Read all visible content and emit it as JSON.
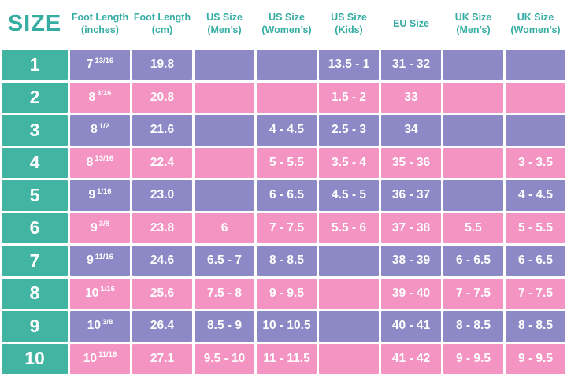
{
  "colors": {
    "teal": "#41B4A2",
    "purple": "#8D89C6",
    "pink": "#F494C2",
    "header_text": "#35ADA3",
    "cell_text": "#FFFFFF",
    "background": "#FFFFFF"
  },
  "chart_data": {
    "type": "table",
    "title": "SIZE",
    "columns": [
      {
        "key": "inches",
        "line1": "Foot Length",
        "line2": "(inches)"
      },
      {
        "key": "cm",
        "line1": "Foot Length",
        "line2": "(cm)"
      },
      {
        "key": "us_mens",
        "line1": "US Size",
        "line2": "(Men’s)"
      },
      {
        "key": "us_womens",
        "line1": "US Size",
        "line2": "(Women’s)"
      },
      {
        "key": "us_kids",
        "line1": "US Size",
        "line2": "(Kids)"
      },
      {
        "key": "eu",
        "line1": "EU Size",
        "line2": ""
      },
      {
        "key": "uk_mens",
        "line1": "UK Size",
        "line2": "(Men’s)"
      },
      {
        "key": "uk_womens",
        "line1": "UK Size",
        "line2": "(Women’s)"
      }
    ],
    "rows": [
      {
        "size": "1",
        "inches": {
          "whole": "7",
          "frac": "13/16"
        },
        "cm": "19.8",
        "us_mens": "",
        "us_womens": "",
        "us_kids": "13.5 - 1",
        "eu": "31 - 32",
        "uk_mens": "",
        "uk_womens": ""
      },
      {
        "size": "2",
        "inches": {
          "whole": "8",
          "frac": "3/16"
        },
        "cm": "20.8",
        "us_mens": "",
        "us_womens": "",
        "us_kids": "1.5 - 2",
        "eu": "33",
        "uk_mens": "",
        "uk_womens": ""
      },
      {
        "size": "3",
        "inches": {
          "whole": "8",
          "frac": "1/2"
        },
        "cm": "21.6",
        "us_mens": "",
        "us_womens": "4 - 4.5",
        "us_kids": "2.5 - 3",
        "eu": "34",
        "uk_mens": "",
        "uk_womens": ""
      },
      {
        "size": "4",
        "inches": {
          "whole": "8",
          "frac": "13/16"
        },
        "cm": "22.4",
        "us_mens": "",
        "us_womens": "5 - 5.5",
        "us_kids": "3.5 - 4",
        "eu": "35 - 36",
        "uk_mens": "",
        "uk_womens": "3 - 3.5"
      },
      {
        "size": "5",
        "inches": {
          "whole": "9",
          "frac": "1/16"
        },
        "cm": "23.0",
        "us_mens": "",
        "us_womens": "6 - 6.5",
        "us_kids": "4.5 - 5",
        "eu": "36 - 37",
        "uk_mens": "",
        "uk_womens": "4 - 4.5"
      },
      {
        "size": "6",
        "inches": {
          "whole": "9",
          "frac": "3/8"
        },
        "cm": "23.8",
        "us_mens": "6",
        "us_womens": "7 - 7.5",
        "us_kids": "5.5 - 6",
        "eu": "37 - 38",
        "uk_mens": "5.5",
        "uk_womens": "5 - 5.5"
      },
      {
        "size": "7",
        "inches": {
          "whole": "9",
          "frac": "11/16"
        },
        "cm": "24.6",
        "us_mens": "6.5 - 7",
        "us_womens": "8 - 8.5",
        "us_kids": "",
        "eu": "38 - 39",
        "uk_mens": "6 - 6.5",
        "uk_womens": "6 - 6.5"
      },
      {
        "size": "8",
        "inches": {
          "whole": "10",
          "frac": "1/16"
        },
        "cm": "25.6",
        "us_mens": "7.5 - 8",
        "us_womens": "9 - 9.5",
        "us_kids": "",
        "eu": "39 - 40",
        "uk_mens": "7 - 7.5",
        "uk_womens": "7 - 7.5"
      },
      {
        "size": "9",
        "inches": {
          "whole": "10",
          "frac": "3/8"
        },
        "cm": "26.4",
        "us_mens": "8.5 - 9",
        "us_womens": "10 - 10.5",
        "us_kids": "",
        "eu": "40 - 41",
        "uk_mens": "8 - 8.5",
        "uk_womens": "8 - 8.5"
      },
      {
        "size": "10",
        "inches": {
          "whole": "10",
          "frac": "11/16"
        },
        "cm": "27.1",
        "us_mens": "9.5 - 10",
        "us_womens": "11 - 11.5",
        "us_kids": "",
        "eu": "41 - 42",
        "uk_mens": "9 - 9.5",
        "uk_womens": "9 - 9.5"
      }
    ]
  }
}
